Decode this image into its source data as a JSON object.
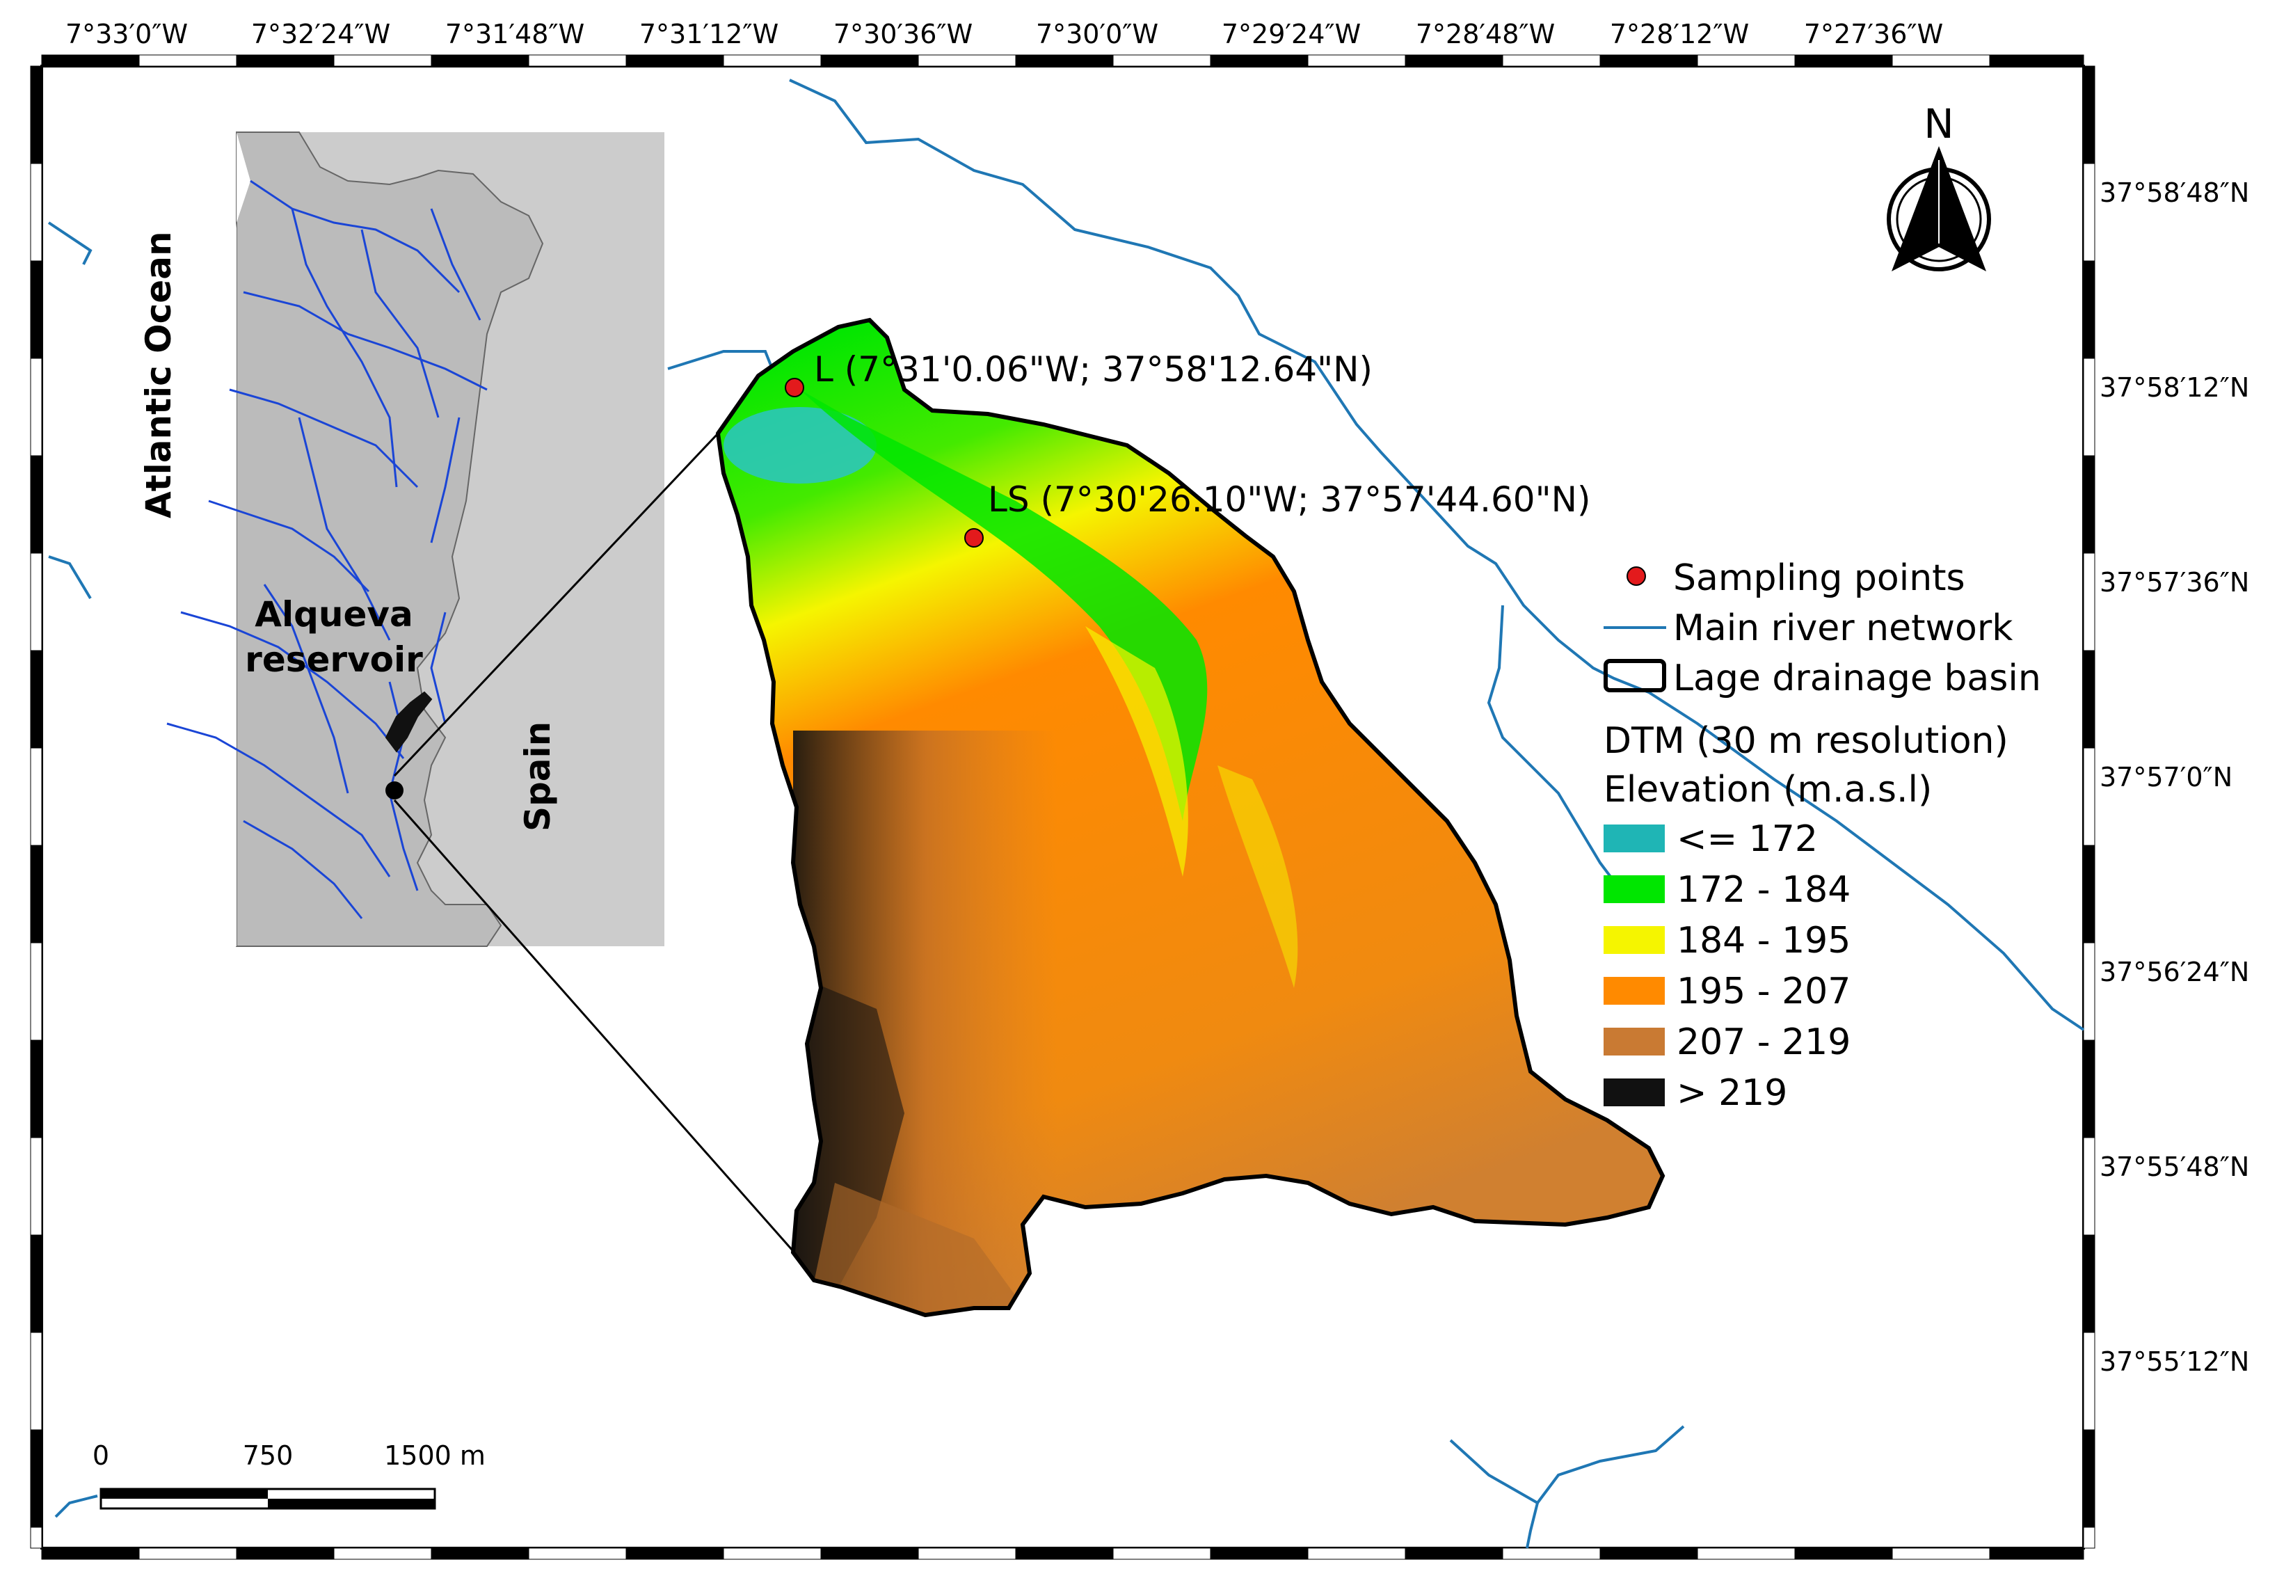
{
  "top_coordinates": [
    "7°33′0″W",
    "7°32′24″W",
    "7°31′48″W",
    "7°31′12″W",
    "7°30′36″W",
    "7°30′0″W",
    "7°29′24″W",
    "7°28′48″W",
    "7°28′12″W",
    "7°27′36″W"
  ],
  "right_coordinates": [
    "37°58′48″N",
    "37°58′12″N",
    "37°57′36″N",
    "37°57′0″N",
    "37°56′24″N",
    "37°55′48″N",
    "37°55′12″N"
  ],
  "inset": {
    "ocean_label": "Atlantic Ocean",
    "reservoir_label_line1": "Alqueva",
    "reservoir_label_line2": "reservoir",
    "country_label": "Spain"
  },
  "sampling_points": [
    {
      "id": "L",
      "label": "L (7°31'0.06\"W; 37°58'12.64\"N)"
    },
    {
      "id": "LS",
      "label": "LS (7°30'26.10\"W; 37°57'44.60\"N)"
    }
  ],
  "north_arrow_label": "N",
  "legend": {
    "sampling_points": "Sampling points",
    "river_network": "Main river network",
    "drainage_basin": "Lage drainage basin",
    "dtm_title": "DTM (30 m resolution)",
    "elevation_title": "Elevation (m.a.s.l)",
    "classes": [
      {
        "label": "<= 172",
        "color": "#1fb5b5"
      },
      {
        "label": "172 - 184",
        "color": "#00e600"
      },
      {
        "label": "184 - 195",
        "color": "#f5f500"
      },
      {
        "label": "195 - 207",
        "color": "#ff8a00"
      },
      {
        "label": "207 - 219",
        "color": "#c97a33"
      },
      {
        "label": "> 219",
        "color": "#111111"
      }
    ],
    "sampling_point_color": "#e31a1c",
    "river_color": "#1f77b4"
  },
  "scale_bar": {
    "labels": [
      "0",
      "750",
      "1500 m"
    ]
  }
}
